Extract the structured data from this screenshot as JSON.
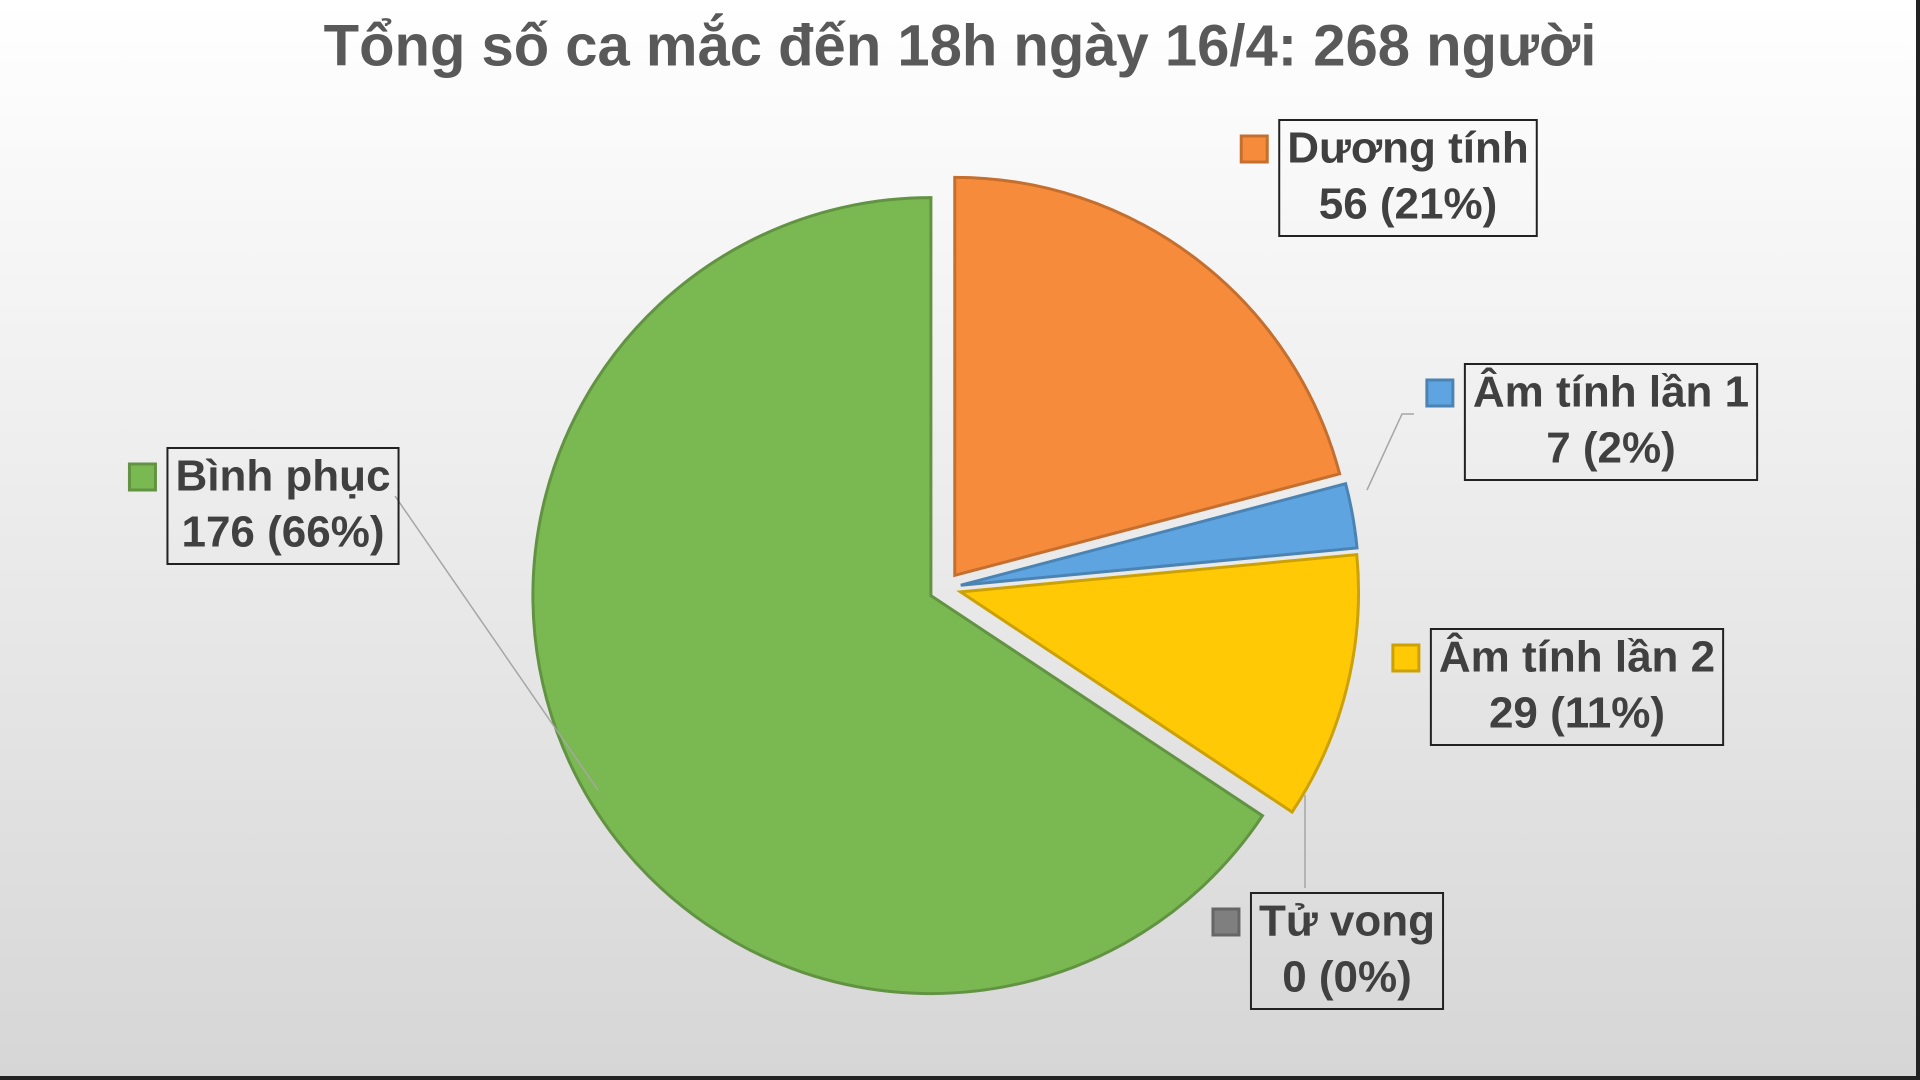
{
  "chart_data": {
    "type": "pie",
    "title": "Tổng số ca mắc đến 18h ngày 16/4: 268 người",
    "categories": [
      "Dương tính",
      "Âm tính lần 1",
      "Âm tính lần 2",
      "Tử vong",
      "Bình phục"
    ],
    "values": [
      56,
      7,
      29,
      0,
      176
    ],
    "value_labels": [
      "56 (21%)",
      "7 (2%)",
      "29 (11%)",
      "0 (0%)",
      "176 (66%)"
    ],
    "colors": [
      "#f68b3b",
      "#5ea4e0",
      "#ffc906",
      "#7f7f7f",
      "#7ab852"
    ]
  }
}
